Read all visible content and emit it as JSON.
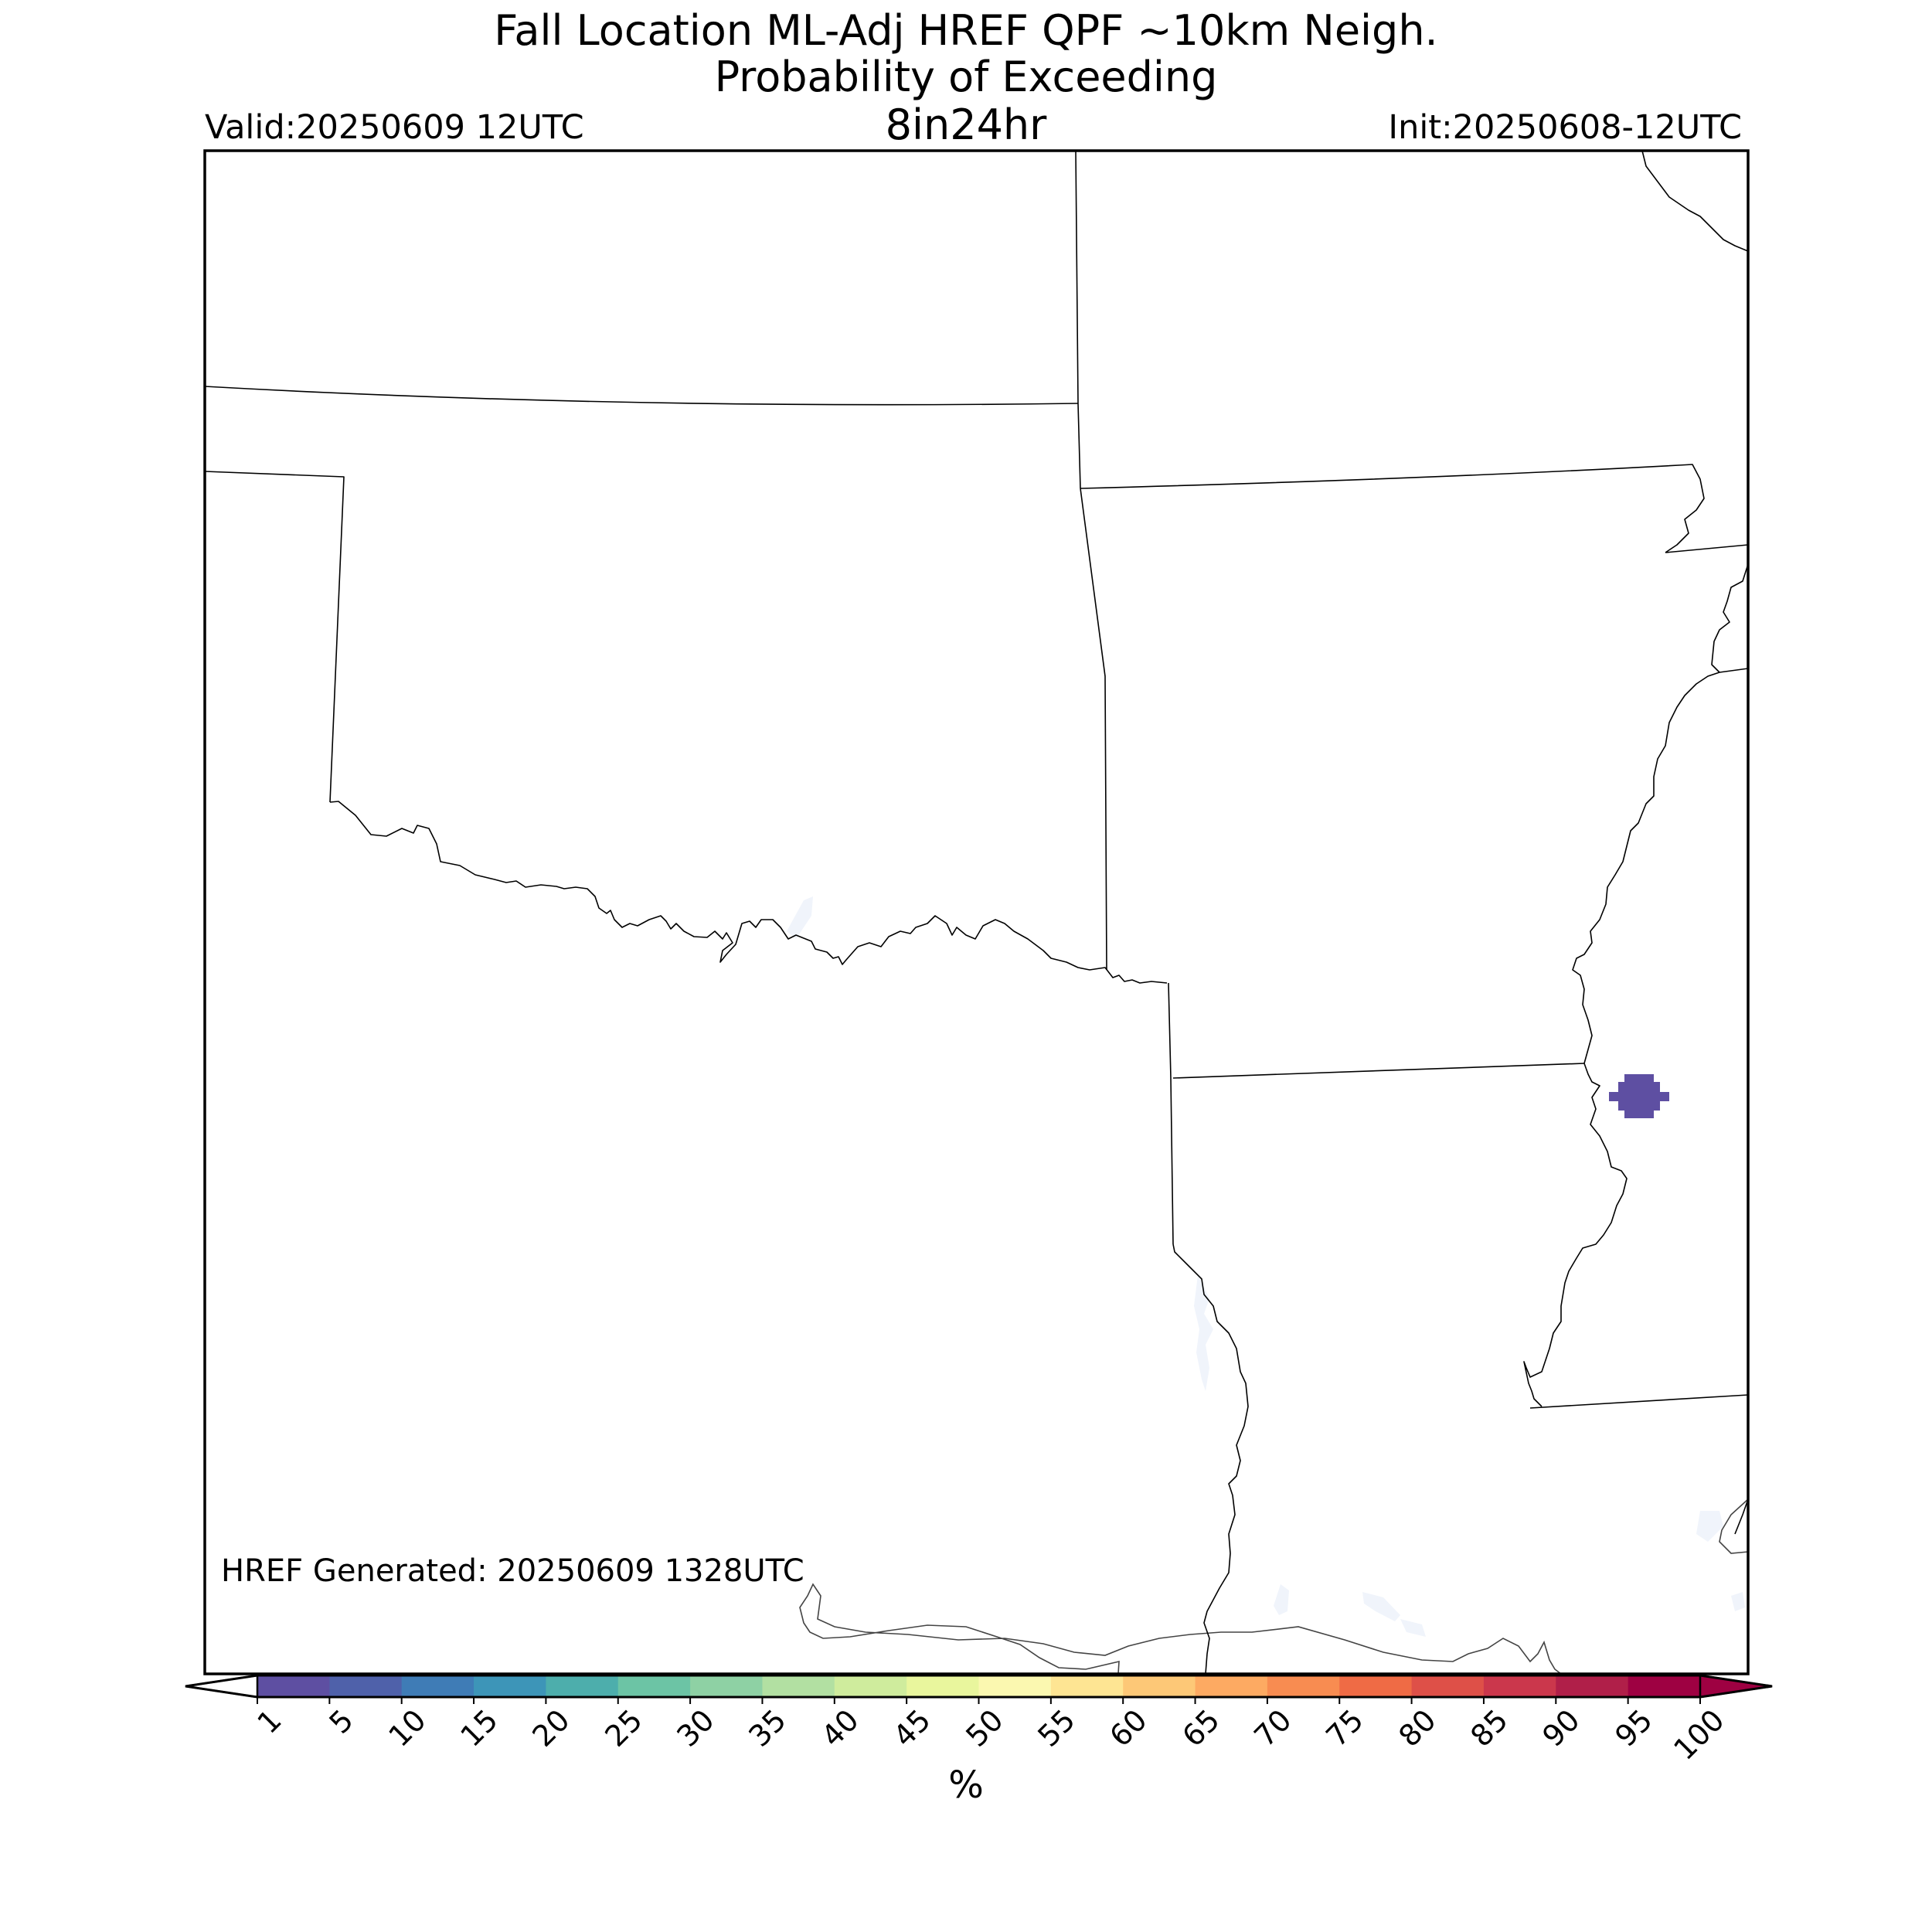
{
  "title": {
    "line1": "Fall Location ML-Adj HREF QPF ~10km Neigh.",
    "line2": "Probability of Exceeding",
    "line3": "8in24hr"
  },
  "valid_label": "Valid:20250609 12UTC",
  "init_label": "Init:20250608-12UTC",
  "generated_label": "HREF Generated: 20250609 1328UTC",
  "colorbar": {
    "units": "%",
    "ticks": [
      "1",
      "5",
      "10",
      "15",
      "20",
      "25",
      "30",
      "35",
      "40",
      "45",
      "50",
      "55",
      "60",
      "65",
      "70",
      "75",
      "80",
      "85",
      "90",
      "95",
      "100"
    ],
    "colors": [
      "#5e4fa2",
      "#4f61aa",
      "#3f7cb6",
      "#3d95b8",
      "#4daeac",
      "#6cc4a5",
      "#8ed1a4",
      "#b2e0a2",
      "#cfec9d",
      "#e9f69d",
      "#fbf8b0",
      "#fee593",
      "#fdc877",
      "#fdaa62",
      "#f88c51",
      "#ef6b45",
      "#de5048",
      "#cb374c",
      "#b01f49",
      "#9e0142"
    ],
    "extend_min": true,
    "extend_max": true
  },
  "field": {
    "probability_percent_bin": "1-5",
    "fill_color": "#5e4fa2"
  },
  "map": {
    "boundary_color": "#000000",
    "water_color": "#f0f4fb"
  }
}
